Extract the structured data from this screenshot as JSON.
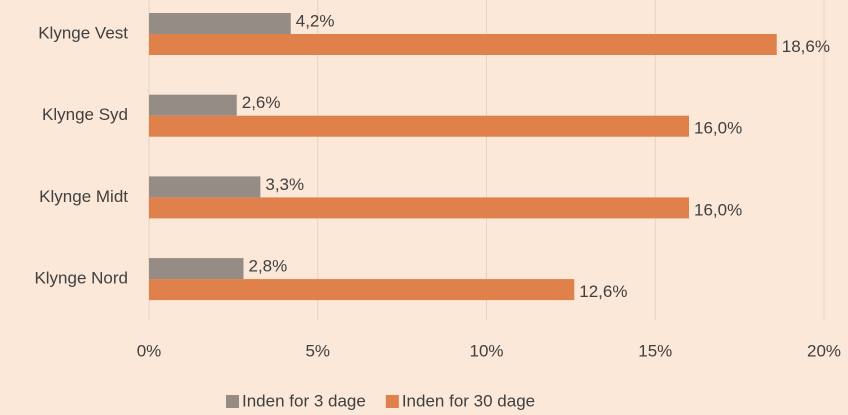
{
  "chart_data": {
    "type": "bar",
    "orientation": "horizontal",
    "categories": [
      "Klynge Vest",
      "Klynge Syd",
      "Klynge Midt",
      "Klynge Nord"
    ],
    "series": [
      {
        "name": "Inden for 3 dage",
        "color": "#958c86",
        "values": [
          4.2,
          2.6,
          3.3,
          2.8
        ],
        "value_labels": [
          "4,2%",
          "2,6%",
          "3,3%",
          "2,8%"
        ]
      },
      {
        "name": "Inden for 30 dage",
        "color": "#e0804a",
        "values": [
          18.6,
          16.0,
          16.0,
          12.6
        ],
        "value_labels": [
          "18,6%",
          "16,0%",
          "16,0%",
          "12,6%"
        ]
      }
    ],
    "xlim": [
      0,
      20
    ],
    "xticks": [
      {
        "value": 0,
        "label": "0%"
      },
      {
        "value": 5,
        "label": "5%"
      },
      {
        "value": 10,
        "label": "10%"
      },
      {
        "value": 15,
        "label": "15%"
      },
      {
        "value": 20,
        "label": "20%"
      }
    ],
    "grid": true,
    "legend": "bottom"
  }
}
